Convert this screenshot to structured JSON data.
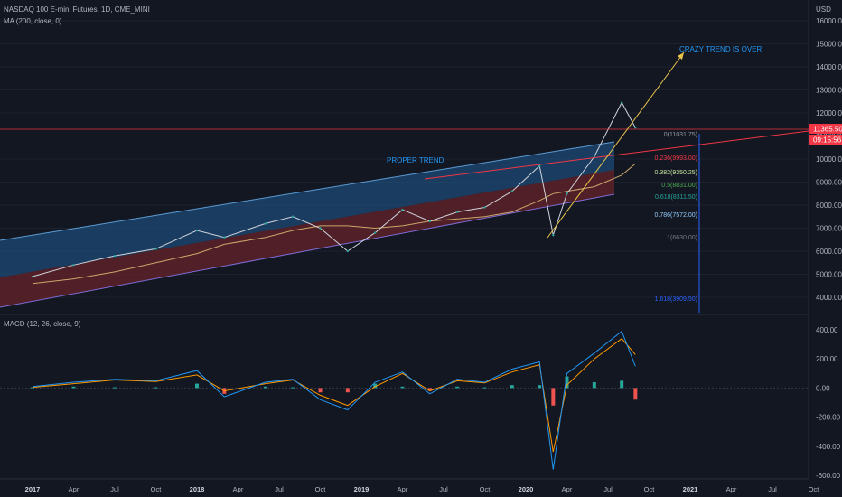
{
  "header": {
    "symbol": "NASDAQ 100 E-mini Futures, 1D, CME_MINI",
    "ma_label": "MA (200, close, 0)",
    "currency": "USD"
  },
  "price_axis": {
    "ticks": [
      "16000.00",
      "15000.00",
      "14000.00",
      "13000.00",
      "12000.00",
      "11000.00",
      "10000.00",
      "9000.00",
      "8000.00",
      "7000.00",
      "6000.00",
      "5000.00",
      "4000.00"
    ],
    "last_price": "11365.50",
    "countdown": "09:15:56"
  },
  "macd_axis": {
    "ticks": [
      "400.00",
      "200.00",
      "0.00",
      "-200.00",
      "-400.00",
      "-600.00"
    ]
  },
  "time_axis": [
    "2017",
    "Apr",
    "Jul",
    "Oct",
    "2018",
    "Apr",
    "Jul",
    "Oct",
    "2019",
    "Apr",
    "Jul",
    "Oct",
    "2020",
    "Apr",
    "Jul",
    "Oct",
    "2021",
    "Apr",
    "Jul",
    "Oct"
  ],
  "annotations": {
    "proper_trend": "PROPER TREND",
    "crazy_trend": "CRAZY TREND IS OVER"
  },
  "fib_levels": [
    {
      "label": "0(11031.75)",
      "color": "#9598a1"
    },
    {
      "label": "0.236(9993.00)",
      "color": "#f23645"
    },
    {
      "label": "0.382(9350.25)",
      "color": "#c8e6a0"
    },
    {
      "label": "0.5(8831.00)",
      "color": "#4caf50"
    },
    {
      "label": "0.618(8311.50)",
      "color": "#26a69a"
    },
    {
      "label": "0.786(7572.00)",
      "color": "#90caf9"
    },
    {
      "label": "1(6630.00)",
      "color": "#787b86"
    },
    {
      "label": "1.618(3909.50)",
      "color": "#2962ff"
    }
  ],
  "macd_label": "MACD (12, 26, close, 9)",
  "colors": {
    "background": "#131722",
    "price_line": "#2962ff",
    "channel_upper": "#1e4d7b",
    "channel_lower": "#6b2429",
    "ma": "#c8a86b",
    "red_line": "#f23645",
    "yellow_line": "#e8c34a",
    "macd": "#2196f3",
    "signal": "#ff9800",
    "hist_pos": "#26a69a",
    "hist_neg": "#ef5350"
  },
  "chart_data": {
    "type": "line",
    "title": "NASDAQ 100 E-mini Futures, 1D, CME_MINI",
    "xlabel": "",
    "ylabel": "USD",
    "ylim": [
      3600,
      16500
    ],
    "x": [
      "2017-01",
      "2017-04",
      "2017-07",
      "2017-10",
      "2018-01",
      "2018-03",
      "2018-06",
      "2018-08",
      "2018-10",
      "2018-12",
      "2019-02",
      "2019-04",
      "2019-06",
      "2019-08",
      "2019-10",
      "2019-12",
      "2020-02",
      "2020-03",
      "2020-04",
      "2020-06",
      "2020-08",
      "2020-09"
    ],
    "series": [
      {
        "name": "",
        "values": [
          4900,
          5400,
          5800,
          6100,
          6900,
          6600,
          7200,
          7500,
          7000,
          6000,
          6800,
          7800,
          7300,
          7700,
          7900,
          8600,
          9700,
          6700,
          8500,
          10100,
          12450,
          11365
        ]
      },
      {
        "name": "MA (200, close, 0)",
        "values": [
          4600,
          4800,
          5100,
          5500,
          5900,
          6300,
          6600,
          6900,
          7100,
          7100,
          7000,
          7100,
          7300,
          7400,
          7500,
          7700,
          8200,
          8500,
          8600,
          8800,
          9300,
          9800
        ]
      }
    ],
    "macd": {
      "name": "MACD (12, 26, close, 9)",
      "ylim": [
        -600,
        450
      ],
      "macd": [
        10,
        40,
        60,
        50,
        120,
        -60,
        40,
        60,
        -80,
        -150,
        40,
        110,
        -40,
        60,
        40,
        130,
        180,
        -560,
        100,
        240,
        390,
        150
      ],
      "signal": [
        5,
        30,
        55,
        45,
        90,
        -20,
        30,
        55,
        -50,
        -120,
        10,
        100,
        -20,
        50,
        35,
        110,
        160,
        -440,
        20,
        200,
        340,
        230
      ]
    }
  }
}
